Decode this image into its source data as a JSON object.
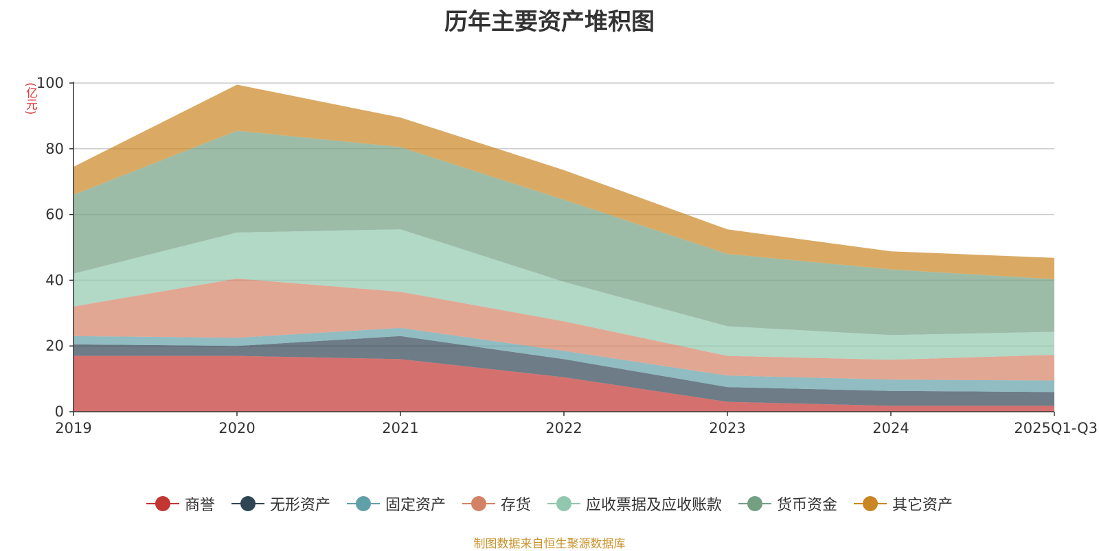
{
  "chart_data": {
    "type": "area",
    "stacked": true,
    "title": "历年主要资产堆积图",
    "unit_label": "(亿元)",
    "categories": [
      "2019",
      "2020",
      "2021",
      "2022",
      "2023",
      "2024",
      "2025Q1-Q3"
    ],
    "ylim": [
      0,
      100
    ],
    "yticks": [
      0,
      20,
      40,
      60,
      80,
      100
    ],
    "grid": true,
    "legend_position": "bottom",
    "series": [
      {
        "name": "商誉",
        "color": "#c23531",
        "values": [
          17,
          17,
          16,
          10.5,
          3,
          1.8,
          1.8
        ]
      },
      {
        "name": "无形资产",
        "color": "#2f4554",
        "values": [
          3.5,
          3,
          7,
          5.5,
          4.5,
          4.5,
          4.2
        ]
      },
      {
        "name": "固定资产",
        "color": "#61a0a8",
        "values": [
          2.5,
          2.5,
          2.5,
          2.5,
          3.5,
          3.5,
          3.5
        ]
      },
      {
        "name": "存货",
        "color": "#d48265",
        "values": [
          9,
          18,
          11,
          9,
          6,
          6,
          7.8
        ]
      },
      {
        "name": "应收票据及应收账款",
        "color": "#91c7ae",
        "values": [
          10,
          14,
          19,
          12,
          9,
          7.5,
          7
        ]
      },
      {
        "name": "货币资金",
        "color": "#749f83",
        "values": [
          24,
          31,
          25,
          25,
          22,
          20,
          16
        ]
      },
      {
        "name": "其它资产",
        "color": "#ca8622",
        "values": [
          8.5,
          14,
          9,
          9,
          7.5,
          5.5,
          6.5
        ]
      }
    ]
  },
  "source_note": "制图数据来自恒生聚源数据库"
}
